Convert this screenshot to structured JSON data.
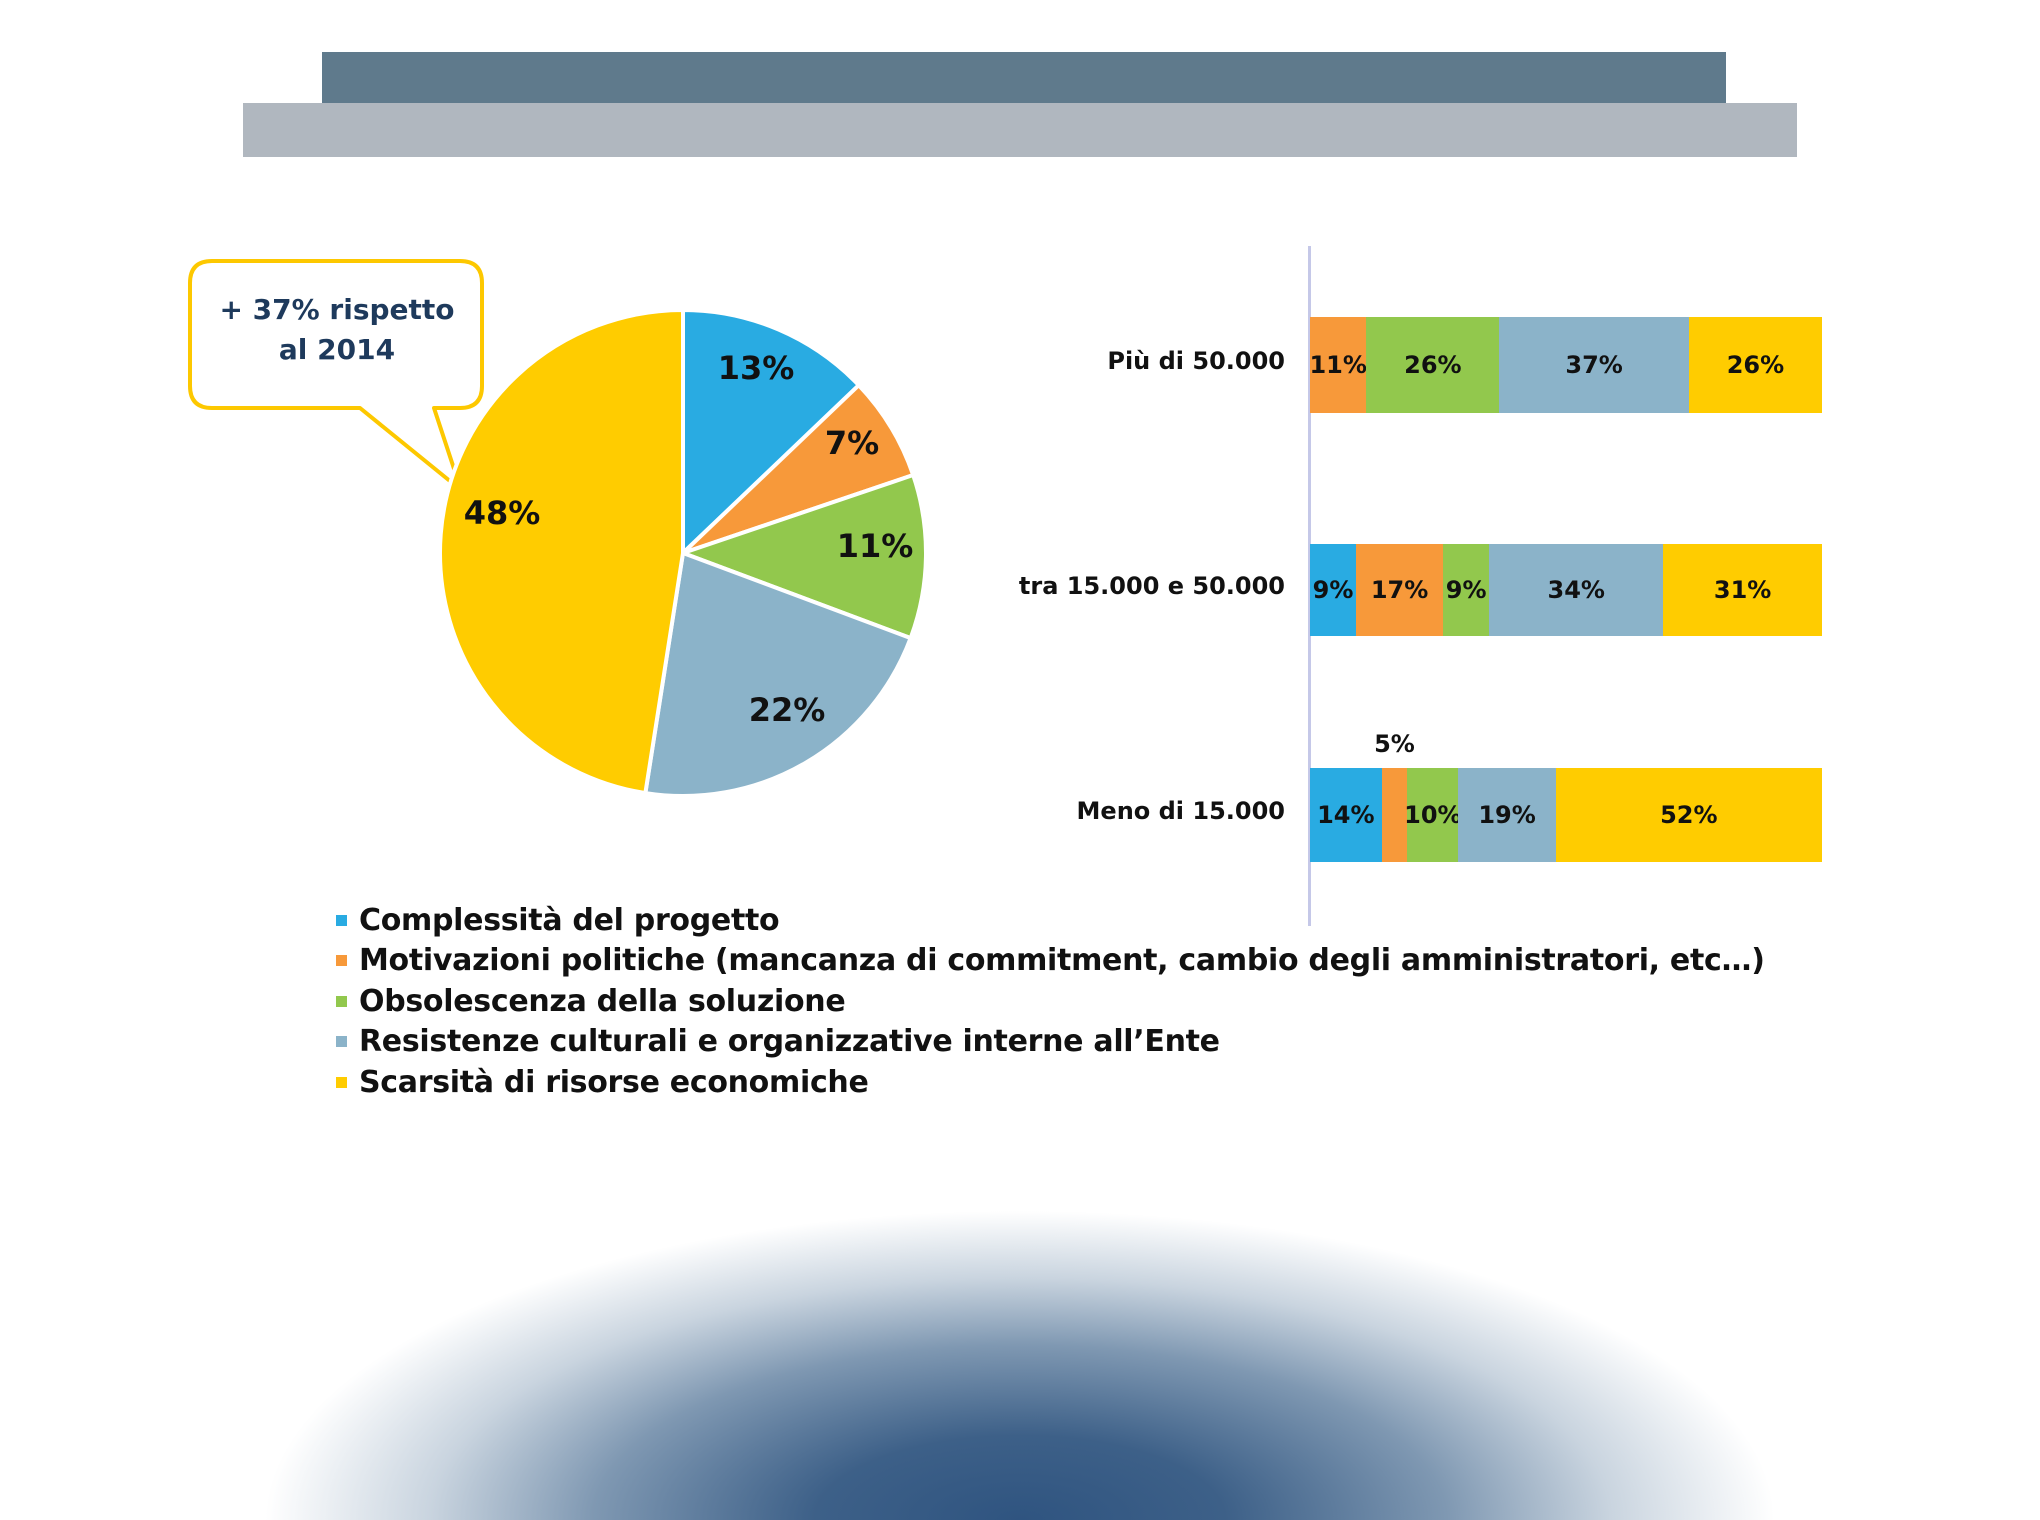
{
  "colors": {
    "complessita": "#29abe2",
    "motivazioni": "#f7993a",
    "obsolescenza": "#92c84d",
    "resistenze": "#8bb3c9",
    "scarsita": "#ffcc00",
    "header_dark": "#5f7a8c",
    "header_light": "#b0b7bf",
    "callout_border": "#fdc800",
    "callout_text": "#1e3a5c",
    "axis": "#c5c8e8"
  },
  "callout": {
    "line1": "+ 37% rispetto",
    "line2": "al 2014"
  },
  "legend": {
    "items": [
      {
        "label": "Complessità del progetto",
        "color": "#29abe2"
      },
      {
        "label": "Motivazioni politiche (mancanza di commitment, cambio degli amministratori, etc…)",
        "color": "#f7993a"
      },
      {
        "label": "Obsolescenza della soluzione",
        "color": "#92c84d"
      },
      {
        "label": "Resistenze culturali e organizzative interne all’Ente",
        "color": "#8bb3c9"
      },
      {
        "label": "Scarsità di risorse economiche",
        "color": "#ffcc00"
      }
    ]
  },
  "chart_data": [
    {
      "type": "pie",
      "title": "",
      "categories": [
        "Complessità del progetto",
        "Motivazioni politiche (mancanza di commitment, cambio degli amministratori, etc…)",
        "Obsolescenza della soluzione",
        "Resistenze culturali e organizzative interne all’Ente",
        "Scarsità di risorse economiche"
      ],
      "values": [
        13,
        7,
        11,
        22,
        48
      ],
      "labels": [
        "13%",
        "7%",
        "11%",
        "22%",
        "48%"
      ],
      "colors": [
        "#29abe2",
        "#f7993a",
        "#92c84d",
        "#8bb3c9",
        "#ffcc00"
      ],
      "start_angle": "12 o'clock, clockwise",
      "annotation": "+ 37% rispetto al 2014 (points to 48%)"
    },
    {
      "type": "bar",
      "orientation": "horizontal",
      "stacked": "100%",
      "title": "",
      "categories": [
        "Più di 50.000",
        "tra 15.000 e 50.000",
        "Meno di 15.000"
      ],
      "series": [
        {
          "name": "Complessità del progetto",
          "color": "#29abe2",
          "values": [
            0,
            9,
            14
          ]
        },
        {
          "name": "Motivazioni politiche (mancanza di commitment, cambio degli amministratori, etc…)",
          "color": "#f7993a",
          "values": [
            11,
            17,
            5
          ]
        },
        {
          "name": "Obsolescenza della soluzione",
          "color": "#92c84d",
          "values": [
            26,
            9,
            10
          ]
        },
        {
          "name": "Resistenze culturali e organizzative interne all’Ente",
          "color": "#8bb3c9",
          "values": [
            37,
            34,
            19
          ]
        },
        {
          "name": "Scarsità di risorse economiche",
          "color": "#ffcc00",
          "values": [
            26,
            31,
            52
          ]
        }
      ],
      "xlabel": "",
      "ylabel": "",
      "xlim": [
        0,
        100
      ],
      "grid": false,
      "legend_position": "bottom (shared with pie)"
    }
  ],
  "bars": {
    "rows": [
      {
        "label": "Più di 50.000",
        "segments": [
          {
            "value": 11,
            "text": "11%",
            "color": "#f7993a"
          },
          {
            "value": 26,
            "text": "26%",
            "color": "#92c84d"
          },
          {
            "value": 37,
            "text": "37%",
            "color": "#8bb3c9"
          },
          {
            "value": 26,
            "text": "26%",
            "color": "#ffcc00"
          }
        ]
      },
      {
        "label": "tra 15.000 e 50.000",
        "segments": [
          {
            "value": 9,
            "text": "9%",
            "color": "#29abe2"
          },
          {
            "value": 17,
            "text": "17%",
            "color": "#f7993a"
          },
          {
            "value": 9,
            "text": "9%",
            "color": "#92c84d"
          },
          {
            "value": 34,
            "text": "34%",
            "color": "#8bb3c9"
          },
          {
            "value": 31,
            "text": "31%",
            "color": "#ffcc00"
          }
        ]
      },
      {
        "label": "Meno di 15.000",
        "segments": [
          {
            "value": 14,
            "text": "14%",
            "color": "#29abe2"
          },
          {
            "value": 5,
            "text": "5%",
            "color": "#f7993a",
            "label_above": true
          },
          {
            "value": 10,
            "text": "10%",
            "color": "#92c84d"
          },
          {
            "value": 19,
            "text": "19%",
            "color": "#8bb3c9"
          },
          {
            "value": 52,
            "text": "52%",
            "color": "#ffcc00"
          }
        ]
      }
    ]
  }
}
